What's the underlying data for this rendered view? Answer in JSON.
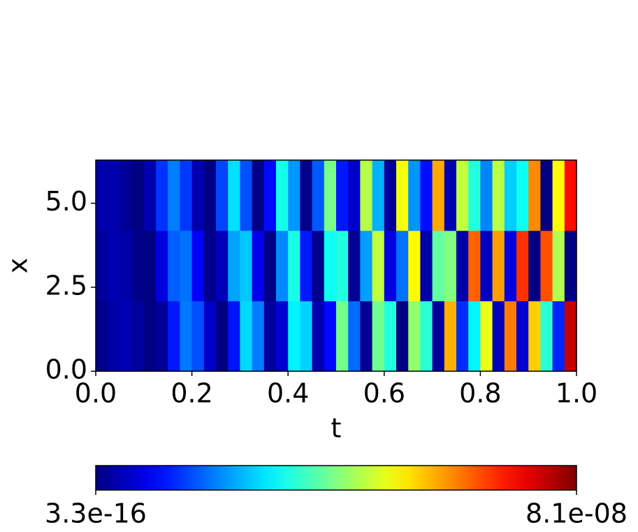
{
  "chart_data": {
    "type": "heatmap",
    "xlabel": "t",
    "ylabel": "x",
    "xlim": [
      0,
      1
    ],
    "ylim": [
      0,
      6.283
    ],
    "xticks": [
      {
        "value": 0,
        "label": "0.0"
      },
      0.2,
      0.4,
      0.6,
      0.8,
      {
        "value": 1,
        "label": "1.0"
      }
    ],
    "yticks": [
      {
        "value": 0,
        "label": "0.0"
      },
      2.5,
      {
        "value": 5,
        "label": "5.0"
      }
    ],
    "colormap": "jet",
    "colorbar": {
      "lim": [
        3.3e-16,
        8.1e-08
      ],
      "ticks": [
        {
          "value": 3.3e-16,
          "label": "3.3e-16"
        },
        {
          "value": 8.1e-08,
          "label": "8.1e-08"
        }
      ]
    },
    "z": [
      [
        8e-10,
        3.1e-09,
        4e-09,
        2.3e-09,
        2e-10,
        2e-09,
        1.2e-08,
        1.97e-08,
        1.64e-08,
        5.9e-09,
        1e-10,
        1.16e-08,
        2.73e-08,
        2e-08,
        2.4e-09,
        6.4e-09,
        2.95e-08,
        2.67e-08,
        3.5e-09,
        1.06e-08,
        3.96e-08,
        1.86e-08,
        1.4e-09,
        3.92e-08,
        3.3e-08,
        1e-10,
        4.2e-08,
        3.38e-08,
        2.7e-09,
        5.68e-08,
        1.36e-08,
        2.98e-08,
        4.9e-08,
        5e-09,
        6.1e-08,
        6.7e-09,
        5.45e-08,
        3.39e-08,
        1.3e-08,
        7.56e-08
      ],
      [
        2.2e-09,
        3.9e-09,
        3.2e-09,
        9e-10,
        2e-10,
        7.6e-09,
        1.77e-08,
        1.91e-08,
        1.03e-08,
        1.1e-09,
        4.6e-09,
        2.3e-08,
        2.6e-08,
        8.5e-09,
        6e-10,
        2.1e-08,
        3.23e-08,
        1.2e-08,
        1.1e-09,
        3.15e-08,
        3.29e-08,
        1.7e-09,
        2.27e-08,
        4.56e-08,
        7.8e-09,
        1.92e-08,
        5.09e-08,
        3.1e-09,
        3.8e-08,
        4.07e-08,
        3.4e-09,
        6.3e-08,
        5.1e-09,
        5.83e-08,
        7.7e-09,
        6.7e-08,
        1e-10,
        6.45e-08,
        4.44e-08,
        3e-10
      ],
      [
        3.5e-09,
        3.8e-09,
        1.8e-09,
        1e-10,
        3.6e-09,
        1.41e-08,
        2e-08,
        1.45e-08,
        3.8e-09,
        5e-10,
        1.55e-08,
        2.8e-08,
        1.64e-08,
        7e-10,
        1.08e-08,
        3.2e-08,
        2.21e-08,
        1e-09,
        1.72e-08,
        3.98e-08,
        1.19e-08,
        6e-09,
        4.48e-08,
        2.43e-08,
        2.1e-09,
        4.98e-08,
        2.19e-08,
        1.11e-08,
        5.75e-08,
        3.9e-09,
        4.58e-08,
        3.32e-08,
        2.06e-08,
        4.52e-08,
        2.65e-08,
        3.13e-08,
        6e-08,
        1e-10,
        5.09e-08,
        7e-08
      ]
    ]
  }
}
